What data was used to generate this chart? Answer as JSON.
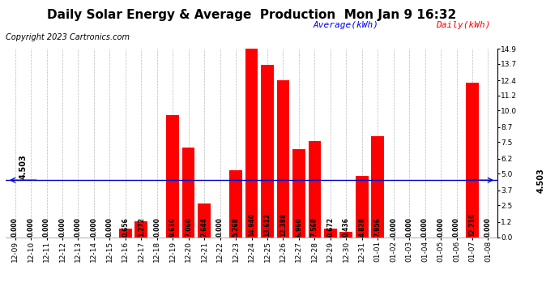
{
  "title": "Daily Solar Energy & Average  Production  Mon Jan 9 16:32",
  "copyright": "Copyright 2023 Cartronics.com",
  "legend_avg": "Average(kWh)",
  "legend_daily": "Daily(kWh)",
  "average_value": 4.503,
  "average_label": "4.503",
  "bar_color": "#ff0000",
  "avg_line_color": "#0000cc",
  "background_color": "#ffffff",
  "plot_bg_color": "#ffffff",
  "grid_color": "#bbbbbb",
  "categories": [
    "12-09",
    "12-10",
    "12-11",
    "12-12",
    "12-13",
    "12-14",
    "12-15",
    "12-16",
    "12-17",
    "12-18",
    "12-19",
    "12-20",
    "12-21",
    "12-22",
    "12-23",
    "12-24",
    "12-25",
    "12-26",
    "12-27",
    "12-28",
    "12-29",
    "12-30",
    "12-31",
    "01-01",
    "01-02",
    "01-03",
    "01-04",
    "01-05",
    "01-06",
    "01-07",
    "01-08"
  ],
  "values": [
    0.0,
    0.0,
    0.0,
    0.0,
    0.0,
    0.0,
    0.0,
    0.656,
    1.272,
    0.0,
    9.616,
    7.06,
    2.644,
    0.0,
    5.268,
    14.94,
    13.612,
    12.388,
    6.96,
    7.568,
    0.672,
    0.436,
    4.828,
    7.956,
    0.0,
    0.0,
    0.0,
    0.0,
    0.0,
    12.216,
    0.0
  ],
  "ylim_min": 0.0,
  "ylim_max": 14.9,
  "yticks": [
    0.0,
    1.2,
    2.5,
    3.7,
    5.0,
    6.2,
    7.5,
    8.7,
    10.0,
    11.2,
    12.4,
    13.7,
    14.9
  ],
  "title_fontsize": 11,
  "copyright_fontsize": 7,
  "tick_fontsize": 6.5,
  "value_fontsize": 5.5,
  "avg_fontsize": 7,
  "legend_fontsize": 8
}
